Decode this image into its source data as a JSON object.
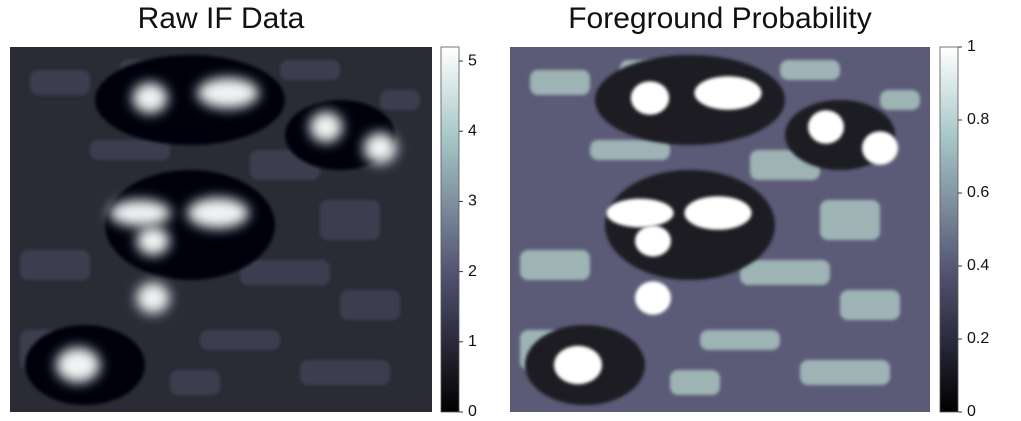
{
  "chart_data": [
    {
      "type": "heatmap",
      "title": "Raw IF Data",
      "colormap": "bone",
      "clim": [
        0,
        5.2
      ],
      "cticks": [
        0,
        1,
        2,
        3,
        4,
        5
      ]
    },
    {
      "type": "heatmap",
      "title": "Foreground Probability",
      "colormap": "bone",
      "clim": [
        0,
        1
      ],
      "cticks": [
        0,
        0.2,
        0.4,
        0.6,
        0.8,
        1
      ]
    }
  ]
}
